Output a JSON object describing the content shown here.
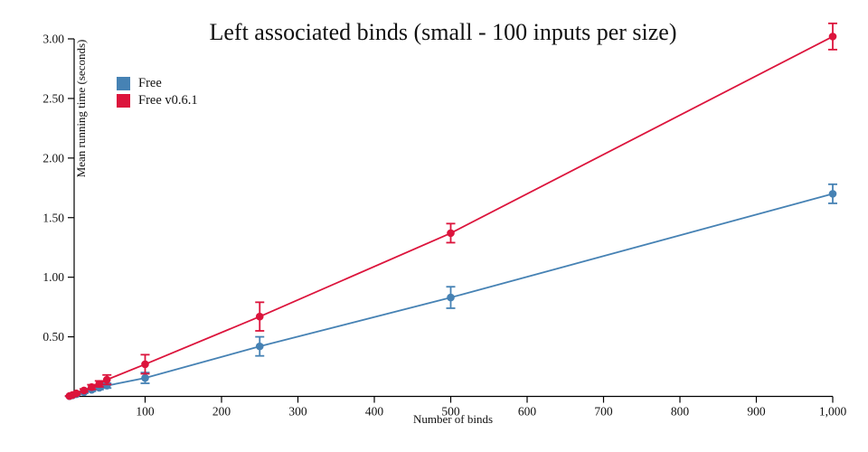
{
  "chart_data": {
    "type": "line",
    "title": "Left associated binds (small - 100 inputs per size)",
    "xlabel": "Number of binds",
    "ylabel": "Mean running time (seconds)",
    "xlim": [
      0,
      1000
    ],
    "ylim": [
      0,
      3.0
    ],
    "grid": false,
    "legend_position": "top-left-inside",
    "error_bars": true,
    "x_ticks": [
      {
        "v": 100,
        "label": "100"
      },
      {
        "v": 200,
        "label": "200"
      },
      {
        "v": 300,
        "label": "300"
      },
      {
        "v": 400,
        "label": "400"
      },
      {
        "v": 500,
        "label": "500"
      },
      {
        "v": 600,
        "label": "600"
      },
      {
        "v": 700,
        "label": "700"
      },
      {
        "v": 800,
        "label": "800"
      },
      {
        "v": 900,
        "label": "900"
      },
      {
        "v": 1000,
        "label": "1,000"
      }
    ],
    "y_ticks": [
      {
        "v": 0.5,
        "label": "0.50"
      },
      {
        "v": 1.0,
        "label": "1.00"
      },
      {
        "v": 1.5,
        "label": "1.50"
      },
      {
        "v": 2.0,
        "label": "2.00"
      },
      {
        "v": 2.5,
        "label": "2.50"
      },
      {
        "v": 3.0,
        "label": "3.00"
      }
    ],
    "x": [
      1,
      5,
      10,
      20,
      30,
      40,
      50,
      100,
      250,
      500,
      1000
    ],
    "series": [
      {
        "name": "Free",
        "color": "#4682b4",
        "values": [
          0.002,
          0.009,
          0.018,
          0.035,
          0.055,
          0.072,
          0.09,
          0.155,
          0.42,
          0.83,
          1.7
        ],
        "errors": [
          0.001,
          0.003,
          0.005,
          0.008,
          0.012,
          0.015,
          0.02,
          0.045,
          0.08,
          0.09,
          0.08
        ]
      },
      {
        "name": "Free v0.6.1",
        "color": "#dc143c",
        "values": [
          0.003,
          0.012,
          0.025,
          0.05,
          0.078,
          0.105,
          0.14,
          0.27,
          0.67,
          1.37,
          3.02
        ],
        "errors": [
          0.001,
          0.004,
          0.008,
          0.012,
          0.02,
          0.025,
          0.04,
          0.08,
          0.12,
          0.08,
          0.11
        ]
      }
    ]
  }
}
